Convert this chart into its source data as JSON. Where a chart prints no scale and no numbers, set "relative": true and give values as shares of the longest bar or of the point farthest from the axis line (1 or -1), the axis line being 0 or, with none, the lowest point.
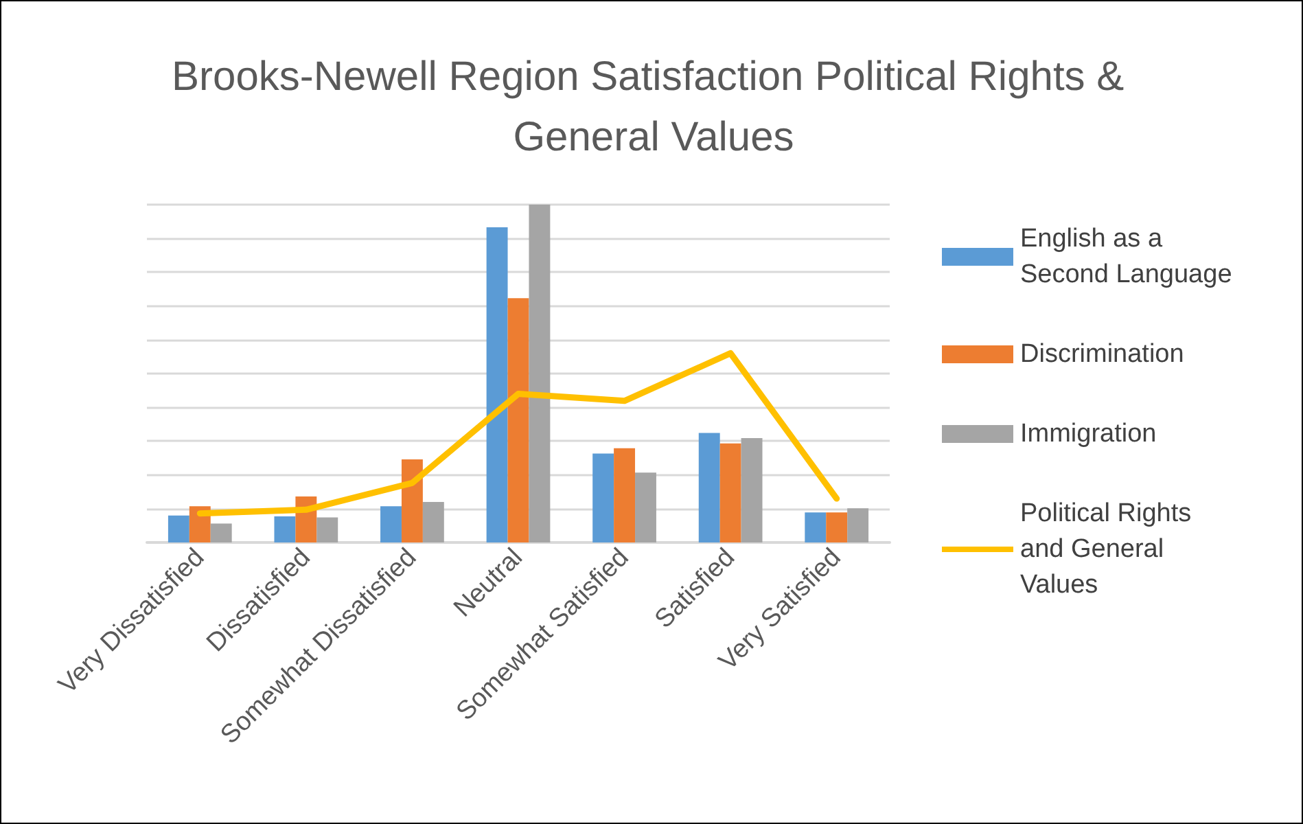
{
  "chart_data": {
    "type": "bar",
    "title": "Brooks-Newell Region Satisfaction Political Rights & General Values",
    "categories": [
      "Very Dissatisfied",
      "Dissatisfied",
      "Somewhat Dissatisfied",
      "Neutral",
      "Somewhat Satisfied",
      "Satisfied",
      "Very Satisfied"
    ],
    "relative": true,
    "grid": "y",
    "legend": "right",
    "series": [
      {
        "name": "English as a Second Language",
        "color": "#5b9bd5",
        "values": [
          0.08,
          0.077,
          0.107,
          0.933,
          0.263,
          0.324,
          0.089
        ]
      },
      {
        "name": "Discrimination",
        "color": "#ed7d31",
        "values": [
          0.107,
          0.136,
          0.246,
          0.723,
          0.279,
          0.293,
          0.089
        ]
      },
      {
        "name": "Immigration",
        "color": "#a5a5a5",
        "values": [
          0.056,
          0.074,
          0.12,
          1,
          0.207,
          0.309,
          0.101
        ]
      },
      {
        "name": "Political Rights and General Values",
        "type": "line",
        "color": "#ffc000",
        "marker": "none",
        "line_style": "solid",
        "values": [
          0.086,
          0.097,
          0.176,
          0.44,
          0.419,
          0.56,
          0.13
        ]
      }
    ]
  }
}
